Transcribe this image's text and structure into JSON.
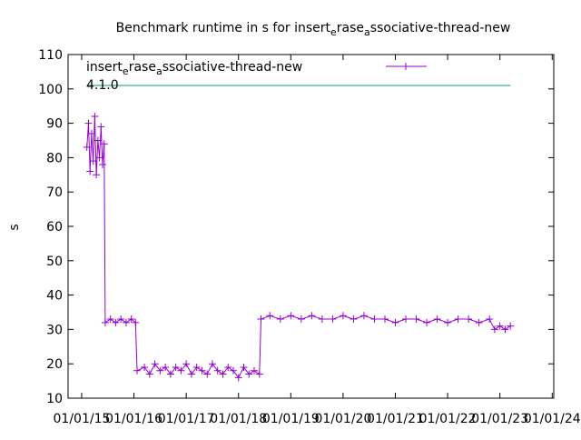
{
  "chart_data": {
    "type": "line",
    "title": [
      "Benchmark runtime in s for insert",
      "e",
      "rase",
      "a",
      "ssociative-thread-new"
    ],
    "y_label": "s",
    "xlim": [
      2014.74,
      2024.03
    ],
    "xticks": [
      {
        "value": 2015,
        "label": "01/01/15"
      },
      {
        "value": 2016,
        "label": "01/01/16"
      },
      {
        "value": 2017,
        "label": "01/01/17"
      },
      {
        "value": 2018,
        "label": "01/01/18"
      },
      {
        "value": 2019,
        "label": "01/01/19"
      },
      {
        "value": 2020,
        "label": "01/01/20"
      },
      {
        "value": 2021,
        "label": "01/01/21"
      },
      {
        "value": 2022,
        "label": "01/01/22"
      },
      {
        "value": 2023,
        "label": "01/01/23"
      },
      {
        "value": 2024,
        "label": "01/01/24"
      }
    ],
    "ylim": [
      10,
      110
    ],
    "yticks": [
      10,
      20,
      30,
      40,
      50,
      60,
      70,
      80,
      90,
      100,
      110
    ],
    "legend": "top-left",
    "series": [
      {
        "name": [
          "insert",
          "e",
          "rase",
          "a",
          "ssociative-thread-new"
        ],
        "color": "#9400d3",
        "markers": true,
        "x": [
          2015.1,
          2015.13,
          2015.16,
          2015.19,
          2015.22,
          2015.25,
          2015.28,
          2015.31,
          2015.34,
          2015.37,
          2015.4,
          2015.43,
          2015.45,
          2015.55,
          2015.65,
          2015.75,
          2015.85,
          2015.95,
          2016.03,
          2016.06,
          2016.2,
          2016.3,
          2016.4,
          2016.5,
          2016.6,
          2016.7,
          2016.8,
          2016.9,
          2017.0,
          2017.1,
          2017.2,
          2017.3,
          2017.4,
          2017.5,
          2017.6,
          2017.7,
          2017.8,
          2017.9,
          2018.0,
          2018.1,
          2018.2,
          2018.3,
          2018.4,
          2018.43,
          2018.6,
          2018.8,
          2019.0,
          2019.2,
          2019.4,
          2019.6,
          2019.8,
          2020.0,
          2020.2,
          2020.4,
          2020.6,
          2020.8,
          2021.0,
          2021.2,
          2021.4,
          2021.6,
          2021.8,
          2022.0,
          2022.2,
          2022.4,
          2022.6,
          2022.8,
          2022.9,
          2023.0,
          2023.1,
          2023.2
        ],
        "values": [
          83,
          90,
          76,
          87,
          79,
          92,
          75,
          85,
          80,
          89,
          78,
          84,
          32,
          33,
          32,
          33,
          32,
          33,
          32,
          18,
          19,
          17,
          20,
          18,
          19,
          17,
          19,
          18,
          20,
          17,
          19,
          18,
          17,
          20,
          18,
          17,
          19,
          18,
          16,
          19,
          17,
          18,
          17,
          33,
          34,
          33,
          34,
          33,
          34,
          33,
          33,
          34,
          33,
          34,
          33,
          33,
          32,
          33,
          33,
          32,
          33,
          32,
          33,
          33,
          32,
          33,
          30,
          31,
          30,
          31
        ]
      },
      {
        "name": "4.1.0",
        "color": "#009e73",
        "markers": false,
        "x": [
          2015.1,
          2023.2
        ],
        "values": [
          101,
          101
        ]
      }
    ]
  }
}
